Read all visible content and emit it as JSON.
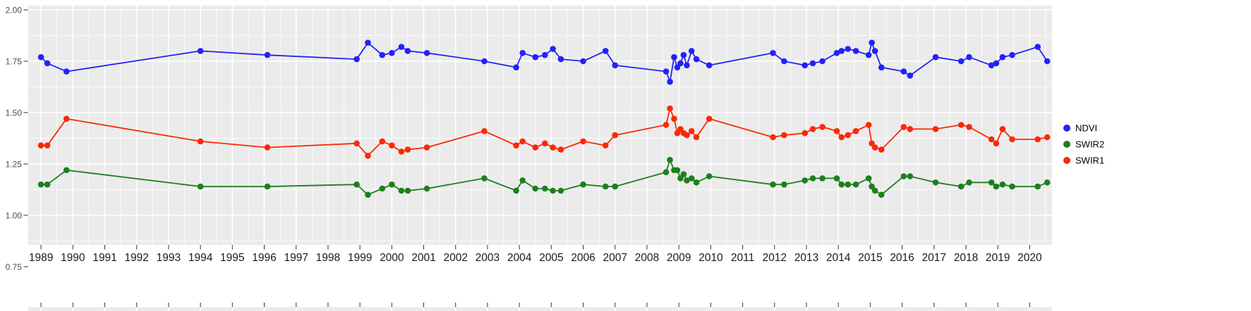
{
  "figure": {
    "background": "#ffffff",
    "panel_background": "#ebebeb",
    "grid_color": "#ffffff",
    "axis_tick_color": "#333333",
    "axis_label_color": "#4d4d4d",
    "x_label_color": "#1a1a1a"
  },
  "legend": {
    "position": "right",
    "items": [
      {
        "label": "NDVI",
        "color": "#2222f8"
      },
      {
        "label": "SWIR2",
        "color": "#1d7f1d"
      },
      {
        "label": "SWIR1",
        "color": "#fb2806"
      }
    ]
  },
  "chart_data": {
    "type": "line",
    "title": "",
    "xlabel": "",
    "ylabel": "",
    "grid": true,
    "legend_position": "right",
    "x_domain": [
      1988.6,
      2020.7
    ],
    "y_domain": [
      0.85,
      2.02
    ],
    "x_ticks": [
      1989,
      1990,
      1991,
      1992,
      1993,
      1994,
      1995,
      1996,
      1997,
      1998,
      1999,
      2000,
      2001,
      2002,
      2003,
      2004,
      2005,
      2006,
      2007,
      2008,
      2009,
      2010,
      2011,
      2012,
      2013,
      2014,
      2015,
      2016,
      2017,
      2018,
      2019,
      2020
    ],
    "x_tick_labels": [
      "1989",
      "1990",
      "1991",
      "1992",
      "1993",
      "1994",
      "1995",
      "1996",
      "1997",
      "1998",
      "1999",
      "2000",
      "2001",
      "2002",
      "2003",
      "2004",
      "2005",
      "2006",
      "2007",
      "2008",
      "2009",
      "2010",
      "2011",
      "2012",
      "2013",
      "2014",
      "2015",
      "2016",
      "2017",
      "2018",
      "2019",
      "2020"
    ],
    "y_major_ticks": [
      2.0,
      1.75,
      1.5,
      1.25,
      1.0,
      0.75
    ],
    "y_tick_labels": [
      "2.00",
      "1.75",
      "1.50",
      "1.25",
      "1.00",
      "0.75"
    ],
    "y_minor_ticks": [
      1.875,
      1.625,
      1.375,
      1.125,
      0.875
    ],
    "x": [
      1989.0,
      1989.2,
      1989.8,
      1994.0,
      1996.1,
      1998.9,
      1999.25,
      1999.7,
      2000.0,
      2000.3,
      2000.5,
      2001.1,
      2002.9,
      2003.9,
      2004.1,
      2004.5,
      2004.8,
      2005.05,
      2005.3,
      2006.0,
      2006.7,
      2007.0,
      2008.6,
      2008.72,
      2008.85,
      2008.95,
      2009.05,
      2009.15,
      2009.25,
      2009.4,
      2009.55,
      2009.95,
      2011.95,
      2012.3,
      2012.95,
      2013.2,
      2013.5,
      2013.95,
      2014.1,
      2014.3,
      2014.55,
      2014.95,
      2015.05,
      2015.15,
      2015.35,
      2016.05,
      2016.25,
      2017.05,
      2017.85,
      2018.1,
      2018.8,
      2018.95,
      2019.15,
      2019.45,
      2020.25,
      2020.55
    ],
    "series": [
      {
        "name": "NDVI",
        "color": "#2222f8",
        "values": [
          1.77,
          1.74,
          1.7,
          1.8,
          1.78,
          1.76,
          1.84,
          1.78,
          1.79,
          1.82,
          1.8,
          1.79,
          1.75,
          1.72,
          1.79,
          1.77,
          1.78,
          1.81,
          1.76,
          1.75,
          1.8,
          1.73,
          1.7,
          1.65,
          1.77,
          1.72,
          1.74,
          1.78,
          1.73,
          1.8,
          1.76,
          1.73,
          1.79,
          1.75,
          1.73,
          1.74,
          1.75,
          1.79,
          1.8,
          1.81,
          1.8,
          1.78,
          1.84,
          1.8,
          1.72,
          1.7,
          1.68,
          1.77,
          1.75,
          1.77,
          1.73,
          1.74,
          1.77,
          1.78,
          1.82,
          1.75
        ]
      },
      {
        "name": "SWIR2",
        "color": "#1d7f1d",
        "values": [
          1.15,
          1.15,
          1.22,
          1.14,
          1.14,
          1.15,
          1.1,
          1.13,
          1.15,
          1.12,
          1.12,
          1.13,
          1.18,
          1.12,
          1.17,
          1.13,
          1.13,
          1.12,
          1.12,
          1.15,
          1.14,
          1.14,
          1.21,
          1.27,
          1.22,
          1.22,
          1.18,
          1.2,
          1.17,
          1.18,
          1.16,
          1.19,
          1.15,
          1.15,
          1.17,
          1.18,
          1.18,
          1.18,
          1.15,
          1.15,
          1.15,
          1.18,
          1.14,
          1.12,
          1.1,
          1.19,
          1.19,
          1.16,
          1.14,
          1.16,
          1.16,
          1.14,
          1.15,
          1.14,
          1.14,
          1.16
        ]
      },
      {
        "name": "SWIR1",
        "color": "#fb2806",
        "values": [
          1.34,
          1.34,
          1.47,
          1.36,
          1.33,
          1.35,
          1.29,
          1.36,
          1.34,
          1.31,
          1.32,
          1.33,
          1.41,
          1.34,
          1.36,
          1.33,
          1.35,
          1.33,
          1.32,
          1.36,
          1.34,
          1.39,
          1.44,
          1.52,
          1.47,
          1.4,
          1.42,
          1.4,
          1.39,
          1.41,
          1.38,
          1.47,
          1.38,
          1.39,
          1.4,
          1.42,
          1.43,
          1.41,
          1.38,
          1.39,
          1.41,
          1.44,
          1.35,
          1.33,
          1.32,
          1.43,
          1.42,
          1.42,
          1.44,
          1.43,
          1.37,
          1.35,
          1.42,
          1.37,
          1.37,
          1.38
        ]
      }
    ]
  }
}
